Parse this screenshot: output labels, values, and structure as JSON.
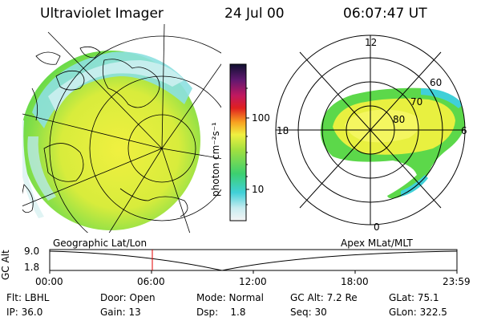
{
  "header": {
    "title": "Ultraviolet Imager",
    "date": "24 Jul 00",
    "time": "06:07:47 UT"
  },
  "colorbar": {
    "unit_label": "photon cm⁻²s⁻¹",
    "ticks": [
      "100",
      "10"
    ]
  },
  "polar": {
    "mlt_labels": [
      "12",
      "18",
      "6",
      "0"
    ],
    "lat_labels": [
      "60",
      "70",
      "80"
    ]
  },
  "timeline": {
    "left_label": "Geographic Lat/Lon",
    "right_label": "Apex MLat/MLT",
    "axis_title": "GC Alt",
    "y_ticks": [
      "9.0",
      "1.8"
    ],
    "x_ticks": [
      "00:00",
      "06:00",
      "12:00",
      "18:00",
      "23:59"
    ]
  },
  "info": {
    "row1": [
      "Flt: LBHL",
      "Door: Open",
      "Mode: Normal",
      "GC Alt: 7.2 Re",
      "GLat: 75.1"
    ],
    "row2": [
      "IP: 36.0",
      "Gain: 13",
      "Dsp:    1.8",
      "Seq: 30",
      "GLon: 322.5"
    ]
  },
  "colors": {
    "aurora_yellow": "#e8f040",
    "aurora_green": "#5cd84a",
    "aurora_cyan": "#40d0d8",
    "marker": "#e00000"
  }
}
